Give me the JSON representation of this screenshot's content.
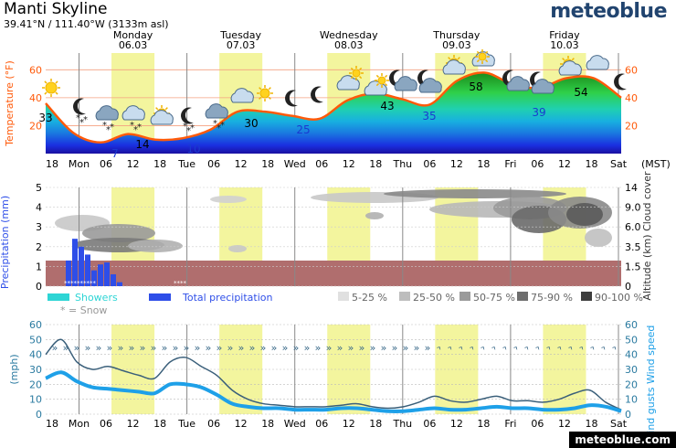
{
  "header": {
    "title": "Manti Skyline",
    "coords": "39.41°N / 111.40°W (3133m asl)",
    "logo": "meteoblue",
    "footer_logo": "meteoblue.com"
  },
  "colors": {
    "day": "#f3f59e",
    "temp_line": "#ff5a0a",
    "wind_line": "#1ea0e8",
    "gust_line": "#3a5f7a",
    "precip_bar": "#2e4ee8",
    "shower_bar": "#2ed5d5",
    "land": "#b06e6e"
  },
  "days": [
    {
      "name": "Monday",
      "date": "06.03"
    },
    {
      "name": "Tuesday",
      "date": "07.03"
    },
    {
      "name": "Wednesday",
      "date": "08.03"
    },
    {
      "name": "Thursday",
      "date": "09.03"
    },
    {
      "name": "Friday",
      "date": "10.03"
    }
  ],
  "time_axis": {
    "ticks": [
      "18",
      "Mon",
      "06",
      "12",
      "18",
      "Tue",
      "06",
      "12",
      "18",
      "Wed",
      "06",
      "12",
      "18",
      "Thu",
      "06",
      "12",
      "18",
      "Fri",
      "06",
      "12",
      "18",
      "Sat"
    ],
    "unit": "(MST)"
  },
  "chart_data": [
    {
      "type": "line",
      "title": "Temperature",
      "ylabel": "Temperature (°F)",
      "yticks": [
        20,
        40,
        60
      ],
      "ylim": [
        0,
        72
      ],
      "x": [
        "18",
        "Mon",
        "06",
        "12",
        "18",
        "Tue",
        "06",
        "12",
        "18",
        "Wed",
        "06",
        "12",
        "18",
        "Thu",
        "06",
        "12",
        "18",
        "Fri",
        "06",
        "12",
        "18",
        "Sat"
      ],
      "values": [
        36,
        15,
        8,
        14,
        10,
        11,
        17,
        30,
        30,
        27,
        25,
        38,
        43,
        39,
        35,
        52,
        58,
        50,
        47,
        54,
        54,
        40
      ],
      "annotations": [
        {
          "text": "33",
          "x": "18"
        },
        {
          "text": "7",
          "x": "06"
        },
        {
          "text": "14",
          "x": "12"
        },
        {
          "text": "10",
          "x": "Tue"
        },
        {
          "text": "30",
          "x": "12"
        },
        {
          "text": "25",
          "x": "Wed"
        },
        {
          "text": "43",
          "x": "18"
        },
        {
          "text": "35",
          "x": "06"
        },
        {
          "text": "58",
          "x": "12"
        },
        {
          "text": "39",
          "x": "06"
        },
        {
          "text": "54",
          "x": "12"
        }
      ]
    },
    {
      "type": "bar",
      "title": "Precipitation",
      "ylabel": "Precipitation (mm)",
      "yticks": [
        0,
        1,
        2,
        3,
        4,
        5
      ],
      "ylim": [
        0,
        5
      ],
      "right_ticks": [
        "0",
        "1.5",
        "3.5",
        "6.0",
        "9.0",
        "14"
      ],
      "right_label": "Altitude (km) Cloud cover",
      "series": [
        {
          "name": "Total precipitation",
          "values": [
            0.0,
            1.3,
            2.4,
            2.0,
            1.6,
            0.8,
            1.1,
            1.2,
            0.6,
            0.2,
            0.0,
            0.0,
            0.0,
            0.0,
            0.0,
            0.0,
            0.0
          ]
        }
      ],
      "legend": [
        "Showers",
        "Total precipitation",
        "* = Snow"
      ],
      "cloud_legend": [
        "5-25 %",
        "25-50 %",
        "50-75 %",
        "75-90 %",
        "90-100 %"
      ]
    },
    {
      "type": "line",
      "title": "Wind",
      "ylabel": "(mph)",
      "right_label": "Wind gusts Wind speed",
      "yticks": [
        0,
        10,
        20,
        30,
        40,
        50,
        60
      ],
      "ylim": [
        0,
        60
      ],
      "series": [
        {
          "name": "Wind speed",
          "values": [
            24,
            28,
            22,
            18,
            17,
            16,
            15,
            14,
            20,
            20,
            18,
            13,
            7,
            5,
            4,
            4,
            3,
            3,
            3,
            4,
            4,
            3,
            2,
            2,
            3,
            4,
            3,
            3,
            4,
            5,
            4,
            4,
            3,
            3,
            4,
            6,
            5,
            2
          ]
        },
        {
          "name": "Wind gusts",
          "values": [
            40,
            50,
            35,
            30,
            32,
            29,
            26,
            24,
            35,
            38,
            32,
            26,
            16,
            10,
            7,
            6,
            5,
            5,
            5,
            6,
            7,
            5,
            4,
            5,
            8,
            12,
            9,
            8,
            10,
            12,
            9,
            9,
            8,
            10,
            14,
            16,
            8,
            3
          ]
        }
      ]
    }
  ]
}
